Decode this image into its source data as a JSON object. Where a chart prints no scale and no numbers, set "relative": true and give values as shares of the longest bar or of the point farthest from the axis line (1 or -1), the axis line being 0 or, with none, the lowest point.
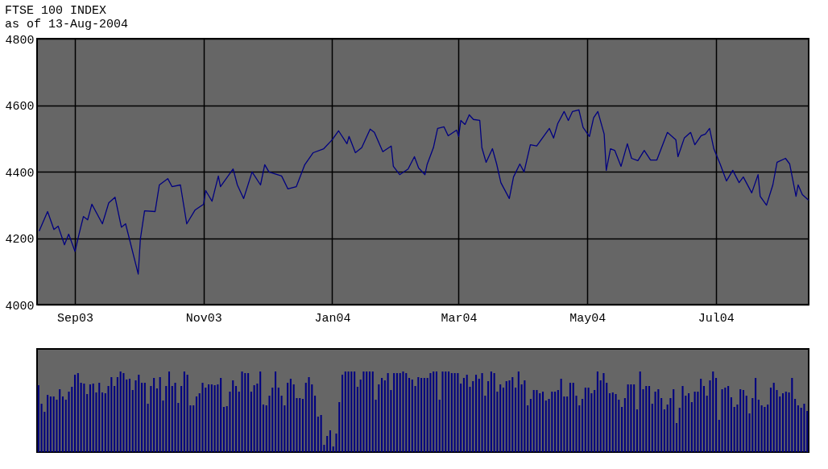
{
  "chart_data": [
    {
      "type": "line",
      "title": "FTSE 100 INDEX",
      "subtitle": "as of 13-Aug-2004",
      "color": "#000080",
      "grid": true,
      "xlim": [
        "2003-08-14",
        "2004-08-14"
      ],
      "xticks": [
        {
          "value": "2003-09-01",
          "label": "Sep03"
        },
        {
          "value": "2003-11-01",
          "label": "Nov03"
        },
        {
          "value": "2004-01-01",
          "label": "Jan04"
        },
        {
          "value": "2004-03-01",
          "label": "Mar04"
        },
        {
          "value": "2004-05-01",
          "label": "May04"
        },
        {
          "value": "2004-07-01",
          "label": "Jul04"
        }
      ],
      "ylim": [
        4000,
        4800
      ],
      "yticks": [
        4000,
        4200,
        4400,
        4600,
        4800
      ],
      "x": [
        "2003-08-15",
        "2003-08-19",
        "2003-08-22",
        "2003-08-24",
        "2003-08-27",
        "2003-08-29",
        "2003-09-01",
        "2003-09-03",
        "2003-09-05",
        "2003-09-07",
        "2003-09-09",
        "2003-09-14",
        "2003-09-17",
        "2003-09-20",
        "2003-09-23",
        "2003-09-25",
        "2003-10-01",
        "2003-10-02",
        "2003-10-04",
        "2003-10-09",
        "2003-10-11",
        "2003-10-15",
        "2003-10-17",
        "2003-10-21",
        "2003-10-24",
        "2003-10-28",
        "2003-11-01",
        "2003-11-02",
        "2003-11-05",
        "2003-11-08",
        "2003-11-09",
        "2003-11-15",
        "2003-11-17",
        "2003-11-20",
        "2003-11-24",
        "2003-11-28",
        "2003-11-30",
        "2003-12-02",
        "2003-12-08",
        "2003-12-11",
        "2003-12-15",
        "2003-12-19",
        "2003-12-23",
        "2003-12-28",
        "2004-01-01",
        "2004-01-04",
        "2004-01-08",
        "2004-01-09",
        "2004-01-12",
        "2004-01-15",
        "2004-01-19",
        "2004-01-21",
        "2004-01-25",
        "2004-01-29",
        "2004-01-30",
        "2004-02-02",
        "2004-02-06",
        "2004-02-09",
        "2004-02-11",
        "2004-02-14",
        "2004-02-15",
        "2004-02-18",
        "2004-02-20",
        "2004-02-23",
        "2004-02-25",
        "2004-02-29",
        "2004-03-01",
        "2004-03-02",
        "2004-03-04",
        "2004-03-06",
        "2004-03-08",
        "2004-03-11",
        "2004-03-12",
        "2004-03-14",
        "2004-03-17",
        "2004-03-19",
        "2004-03-21",
        "2004-03-25",
        "2004-03-27",
        "2004-03-30",
        "2004-04-01",
        "2004-04-04",
        "2004-04-07",
        "2004-04-13",
        "2004-04-15",
        "2004-04-17",
        "2004-04-20",
        "2004-04-22",
        "2004-04-24",
        "2004-04-27",
        "2004-04-29",
        "2004-05-02",
        "2004-05-04",
        "2004-05-06",
        "2004-05-09",
        "2004-05-10",
        "2004-05-12",
        "2004-05-14",
        "2004-05-17",
        "2004-05-20",
        "2004-05-22",
        "2004-05-25",
        "2004-05-28",
        "2004-05-31",
        "2004-06-03",
        "2004-06-08",
        "2004-06-12",
        "2004-06-13",
        "2004-06-16",
        "2004-06-19",
        "2004-06-21",
        "2004-06-24",
        "2004-06-26",
        "2004-06-28",
        "2004-06-30",
        "2004-07-03",
        "2004-07-06",
        "2004-07-09",
        "2004-07-12",
        "2004-07-14",
        "2004-07-18",
        "2004-07-21",
        "2004-07-22",
        "2004-07-25",
        "2004-07-28",
        "2004-07-30",
        "2004-08-03",
        "2004-08-05",
        "2004-08-08",
        "2004-08-09",
        "2004-08-11",
        "2004-08-14"
      ],
      "values": [
        4221,
        4280,
        4226,
        4236,
        4180,
        4212,
        4160,
        4214,
        4265,
        4255,
        4302,
        4243,
        4306,
        4323,
        4233,
        4243,
        4092,
        4197,
        4282,
        4280,
        4360,
        4379,
        4355,
        4360,
        4243,
        4285,
        4302,
        4343,
        4311,
        4387,
        4355,
        4408,
        4360,
        4319,
        4399,
        4360,
        4421,
        4399,
        4387,
        4348,
        4355,
        4421,
        4457,
        4469,
        4496,
        4523,
        4484,
        4506,
        4457,
        4472,
        4528,
        4518,
        4460,
        4477,
        4416,
        4391,
        4408,
        4445,
        4411,
        4391,
        4421,
        4472,
        4530,
        4535,
        4508,
        4525,
        4506,
        4554,
        4542,
        4571,
        4557,
        4554,
        4472,
        4428,
        4469,
        4423,
        4367,
        4319,
        4384,
        4423,
        4399,
        4481,
        4477,
        4530,
        4501,
        4545,
        4581,
        4554,
        4581,
        4586,
        4533,
        4506,
        4562,
        4581,
        4513,
        4404,
        4469,
        4464,
        4416,
        4484,
        4440,
        4433,
        4464,
        4435,
        4435,
        4518,
        4496,
        4445,
        4501,
        4518,
        4481,
        4508,
        4513,
        4530,
        4469,
        4423,
        4372,
        4404,
        4367,
        4384,
        4336,
        4391,
        4326,
        4299,
        4360,
        4428,
        4440,
        4423,
        4326,
        4360,
        4331,
        4314
      ]
    },
    {
      "type": "bar",
      "color": "#000080",
      "relative": true,
      "categories": [
        null,
        null,
        null,
        null,
        null,
        null,
        null,
        null,
        null,
        null,
        null,
        null,
        null,
        null,
        null,
        null,
        null,
        null,
        null,
        null,
        null,
        null,
        null,
        null,
        null,
        null,
        null,
        null,
        null,
        null,
        null,
        null,
        null,
        null,
        null,
        null,
        null,
        null,
        null,
        null,
        null,
        null,
        null,
        null,
        null,
        null,
        null,
        null,
        null,
        null,
        null,
        null,
        null,
        null,
        null,
        null,
        null,
        null,
        null,
        null,
        null,
        null,
        null,
        null,
        null,
        null,
        null,
        null,
        null,
        null,
        null,
        null,
        null,
        null,
        null,
        null,
        null,
        null,
        null,
        null,
        null,
        null,
        null,
        null,
        null,
        null,
        null,
        null,
        null,
        null,
        null,
        null,
        null,
        null,
        null,
        null,
        null,
        null,
        null,
        null,
        null,
        null,
        null,
        null,
        null,
        null,
        null,
        null,
        null,
        null,
        null,
        null,
        null,
        null,
        null,
        null,
        null,
        null,
        null,
        null,
        null,
        null,
        null,
        null,
        null,
        null,
        null,
        null,
        null,
        null,
        null,
        null,
        null,
        null,
        null,
        null,
        null,
        null,
        null,
        null,
        null,
        null,
        null,
        null,
        null,
        null,
        null,
        null,
        null,
        null,
        null,
        null,
        null,
        null,
        null,
        null,
        null,
        null,
        null,
        null,
        null,
        null,
        null,
        null,
        null,
        null,
        null,
        null,
        null,
        null,
        null,
        null,
        null,
        null,
        null,
        null,
        null,
        null,
        null,
        null,
        null,
        null,
        null,
        null,
        null,
        null,
        null,
        null,
        null,
        null,
        null,
        null,
        null,
        null,
        null,
        null,
        null,
        null,
        null,
        null,
        null,
        null,
        null,
        null,
        null,
        null,
        null,
        null,
        null,
        null,
        null,
        null,
        null,
        null,
        null,
        null,
        null,
        null,
        null,
        null,
        null,
        null,
        null,
        null,
        null,
        null,
        null,
        null,
        null,
        null,
        null,
        null,
        null,
        null,
        null,
        null,
        null,
        null,
        null,
        null,
        null,
        null,
        null,
        null,
        null,
        null,
        null,
        null,
        null,
        null,
        null,
        null,
        null,
        null
      ],
      "values": [
        0.83,
        0.6,
        0.5,
        0.71,
        0.69,
        0.69,
        0.65,
        0.78,
        0.69,
        0.65,
        0.75,
        0.81,
        0.96,
        0.98,
        0.86,
        0.85,
        0.72,
        0.84,
        0.85,
        0.74,
        0.86,
        0.74,
        0.73,
        0.82,
        0.93,
        0.82,
        0.93,
        1,
        0.98,
        0.9,
        0.91,
        0.77,
        0.89,
        0.96,
        0.86,
        0.86,
        0.6,
        0.82,
        0.92,
        0.79,
        0.93,
        0.64,
        0.82,
        1,
        0.82,
        0.86,
        0.61,
        0.82,
        1,
        0.96,
        0.58,
        0.58,
        0.69,
        0.73,
        0.86,
        0.8,
        0.84,
        0.84,
        0.83,
        0.84,
        0.92,
        0.56,
        0.57,
        0.75,
        0.89,
        0.82,
        0.75,
        1,
        0.98,
        0.98,
        0.75,
        0.83,
        0.85,
        1,
        0.59,
        0.58,
        0.7,
        0.8,
        1,
        0.8,
        0.7,
        0.58,
        0.86,
        0.91,
        0.84,
        0.67,
        0.67,
        0.66,
        0.86,
        0.93,
        0.84,
        0.7,
        0.44,
        0.46,
        0.09,
        0.2,
        0.27,
        0.07,
        0.23,
        0.62,
        0.96,
        1,
        1,
        1,
        1,
        0.81,
        0.9,
        1,
        1,
        1,
        1,
        0.65,
        0.84,
        0.92,
        0.89,
        0.98,
        0.77,
        0.98,
        0.98,
        0.98,
        1,
        0.98,
        0.92,
        0.9,
        0.82,
        0.93,
        0.92,
        0.92,
        0.92,
        0.98,
        1,
        1,
        0.65,
        1,
        1,
        1,
        0.98,
        0.98,
        0.98,
        0.85,
        0.92,
        0.96,
        0.81,
        0.88,
        0.96,
        0.91,
        0.98,
        0.7,
        0.88,
        1,
        0.98,
        0.75,
        0.84,
        0.8,
        0.88,
        0.89,
        0.93,
        0.8,
        1,
        0.84,
        0.89,
        0.58,
        0.66,
        0.77,
        0.77,
        0.73,
        0.75,
        0.64,
        0.66,
        0.75,
        0.75,
        0.77,
        0.91,
        0.69,
        0.69,
        0.86,
        0.86,
        0.7,
        0.58,
        0.66,
        0.8,
        0.8,
        0.73,
        0.77,
        1,
        0.89,
        0.98,
        0.86,
        0.73,
        0.74,
        0.72,
        0.65,
        0.56,
        0.67,
        0.84,
        0.84,
        0.84,
        0.53,
        1,
        0.78,
        0.82,
        0.82,
        0.6,
        0.75,
        0.78,
        0.67,
        0.53,
        0.59,
        0.67,
        0.78,
        0.36,
        0.55,
        0.82,
        0.7,
        0.73,
        0.62,
        0.75,
        0.75,
        0.91,
        0.82,
        0.7,
        0.89,
        1,
        0.92,
        0.4,
        0.78,
        0.8,
        0.82,
        0.68,
        0.56,
        0.59,
        0.78,
        0.77,
        0.7,
        0.48,
        0.67,
        0.92,
        0.65,
        0.58,
        0.56,
        0.59,
        0.8,
        0.86,
        0.77,
        0.69,
        0.73,
        0.75,
        0.74,
        0.92,
        0.66,
        0.58,
        0.55,
        0.6,
        0.51
      ]
    }
  ]
}
